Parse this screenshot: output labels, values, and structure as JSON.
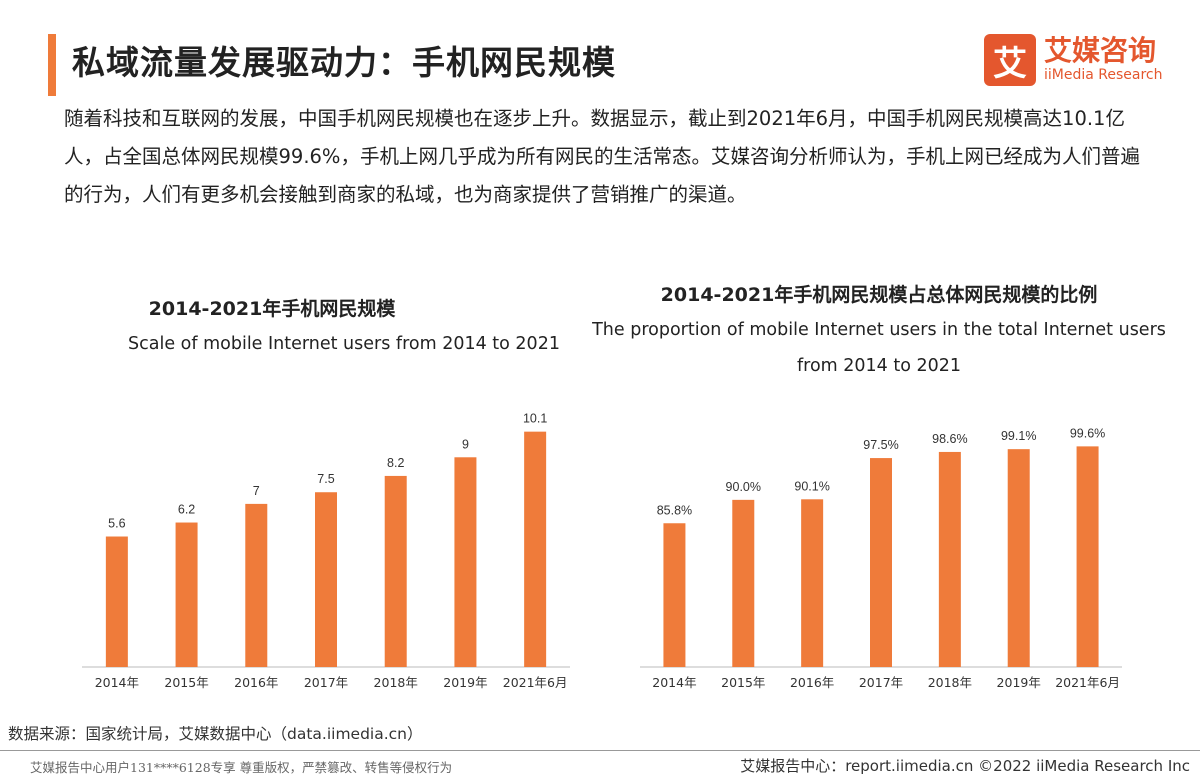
{
  "header": {
    "title": "私域流量发展驱动力：手机网民规模",
    "logo_mark": "艾",
    "logo_cn": "艾媒咨询",
    "logo_en": "iiMedia Research"
  },
  "intro_text": "随着科技和互联网的发展，中国手机网民规模也在逐步上升。数据显示，截止到2021年6月，中国手机网民规模高达10.1亿人，占全国总体网民规模99.6%，手机上网几乎成为所有网民的生活常态。艾媒咨询分析师认为，手机上网已经成为人们普遍的行为，人们有更多机会接触到商家的私域，也为商家提供了营销推广的渠道。",
  "colors": {
    "accent": "#ef7b3a",
    "bar": "#ef7b3a",
    "logo": "#e4572e"
  },
  "chart_data": [
    {
      "type": "bar",
      "title": "2014-2021年手机网民规模",
      "subtitle": "Scale of mobile Internet users from 2014 to 2021",
      "categories": [
        "2014年",
        "2015年",
        "2016年",
        "2017年",
        "2018年",
        "2019年",
        "2021年6月"
      ],
      "values": [
        5.6,
        6.2,
        7,
        7.5,
        8.2,
        9,
        10.1
      ],
      "value_labels": [
        "5.6",
        "6.2",
        "7",
        "7.5",
        "8.2",
        "9",
        "10.1"
      ],
      "ylim": [
        0,
        10.6
      ],
      "grid": false,
      "legend": "none"
    },
    {
      "type": "bar",
      "title": "2014-2021年手机网民规模占总体网民规模的比例",
      "subtitle": "The proportion of mobile Internet users in the total Internet users from 2014 to 2021",
      "categories": [
        "2014年",
        "2015年",
        "2016年",
        "2017年",
        "2018年",
        "2019年",
        "2021年6月"
      ],
      "values": [
        85.8,
        90.0,
        90.1,
        97.5,
        98.6,
        99.1,
        99.6
      ],
      "value_labels": [
        "85.8%",
        "90.0%",
        "90.1%",
        "97.5%",
        "98.6%",
        "99.1%",
        "99.6%"
      ],
      "ylim": [
        60,
        102
      ],
      "grid": false,
      "legend": "none"
    }
  ],
  "footer": {
    "source": "数据来源：国家统计局，艾媒数据中心（data.iimedia.cn）",
    "copyright_notice": "艾媒报告中心用户131****6128专享 尊重版权，严禁篡改、转售等侵权行为",
    "report_center": "艾媒报告中心：report.iimedia.cn ©2022 iiMedia Research Inc"
  }
}
